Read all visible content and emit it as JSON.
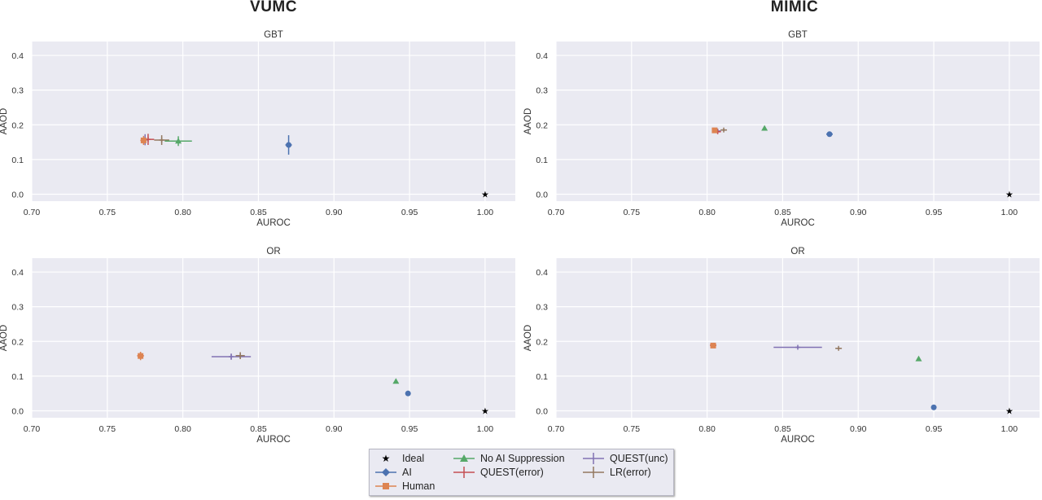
{
  "column_titles": [
    "VUMC",
    "MIMIC"
  ],
  "colors": {
    "Ideal": "#000000",
    "AI": "#4c72b0",
    "Human": "#dd8452",
    "No AI Suppression": "#55a868",
    "QUEST(error)": "#c44e52",
    "QUEST(unc)": "#8172b3",
    "LR(error)": "#937860"
  },
  "markers": {
    "Ideal": "star",
    "AI": "circle",
    "Human": "square",
    "No AI Suppression": "triangle",
    "QUEST(error)": "plus",
    "QUEST(unc)": "plus",
    "LR(error)": "plus"
  },
  "legend": {
    "entries": [
      "Ideal",
      "AI",
      "Human",
      "No AI Suppression",
      "QUEST(error)",
      "QUEST(unc)",
      "LR(error)"
    ]
  },
  "chart_data": [
    {
      "type": "scatter",
      "dataset": "VUMC",
      "title": "GBT",
      "xlabel": "AUROC",
      "ylabel": "AAOD",
      "xlim": [
        0.7,
        1.02
      ],
      "ylim": [
        -0.02,
        0.44
      ],
      "xticks": [
        "0.70",
        "0.75",
        "0.80",
        "0.85",
        "0.90",
        "0.95",
        "1.00"
      ],
      "yticks": [
        "0.0",
        "0.1",
        "0.2",
        "0.3",
        "0.4"
      ],
      "grid": true,
      "points": [
        {
          "series": "Ideal",
          "x": 1.0,
          "y": 0.0,
          "xerr": 0,
          "yerr": 0
        },
        {
          "series": "AI",
          "x": 0.87,
          "y": 0.142,
          "xerr": 0.001,
          "yerr": 0.028
        },
        {
          "series": "Human",
          "x": 0.774,
          "y": 0.155,
          "xerr": 0.002,
          "yerr": 0.013
        },
        {
          "series": "No AI Suppression",
          "x": 0.797,
          "y": 0.153,
          "xerr": 0.009,
          "yerr": 0.014
        },
        {
          "series": "QUEST(error)",
          "x": 0.777,
          "y": 0.158,
          "xerr": 0.004,
          "yerr": 0.016
        },
        {
          "series": "QUEST(unc)",
          "x": 0.775,
          "y": 0.157,
          "xerr": 0.002,
          "yerr": 0.016
        },
        {
          "series": "LR(error)",
          "x": 0.786,
          "y": 0.156,
          "xerr": 0.005,
          "yerr": 0.014
        }
      ]
    },
    {
      "type": "scatter",
      "dataset": "MIMIC",
      "title": "GBT",
      "xlabel": "AUROC",
      "ylabel": "AAOD",
      "xlim": [
        0.7,
        1.02
      ],
      "ylim": [
        -0.02,
        0.44
      ],
      "xticks": [
        "0.70",
        "0.75",
        "0.80",
        "0.85",
        "0.90",
        "0.95",
        "1.00"
      ],
      "yticks": [
        "0.0",
        "0.1",
        "0.2",
        "0.3",
        "0.4"
      ],
      "grid": true,
      "points": [
        {
          "series": "Ideal",
          "x": 1.0,
          "y": 0.0,
          "xerr": 0,
          "yerr": 0
        },
        {
          "series": "AI",
          "x": 0.881,
          "y": 0.173,
          "xerr": 0.002,
          "yerr": 0.003
        },
        {
          "series": "Human",
          "x": 0.805,
          "y": 0.184,
          "xerr": 0,
          "yerr": 0
        },
        {
          "series": "No AI Suppression",
          "x": 0.838,
          "y": 0.19,
          "xerr": 0,
          "yerr": 0
        },
        {
          "series": "QUEST(error)",
          "x": 0.807,
          "y": 0.18,
          "xerr": 0.002,
          "yerr": 0.003
        },
        {
          "series": "QUEST(unc)",
          "x": 0.807,
          "y": 0.182,
          "xerr": 0.001,
          "yerr": 0.002
        },
        {
          "series": "LR(error)",
          "x": 0.811,
          "y": 0.185,
          "xerr": 0.002,
          "yerr": 0.003
        }
      ]
    },
    {
      "type": "scatter",
      "dataset": "VUMC",
      "title": "OR",
      "xlabel": "AUROC",
      "ylabel": "AAOD",
      "xlim": [
        0.7,
        1.02
      ],
      "ylim": [
        -0.02,
        0.44
      ],
      "xticks": [
        "0.70",
        "0.75",
        "0.80",
        "0.85",
        "0.90",
        "0.95",
        "1.00"
      ],
      "yticks": [
        "0.0",
        "0.1",
        "0.2",
        "0.3",
        "0.4"
      ],
      "grid": true,
      "points": [
        {
          "series": "Ideal",
          "x": 1.0,
          "y": 0.0,
          "xerr": 0,
          "yerr": 0
        },
        {
          "series": "AI",
          "x": 0.949,
          "y": 0.05,
          "xerr": 0,
          "yerr": 0
        },
        {
          "series": "Human",
          "x": 0.772,
          "y": 0.158,
          "xerr": 0.002,
          "yerr": 0.012
        },
        {
          "series": "No AI Suppression",
          "x": 0.941,
          "y": 0.085,
          "xerr": 0,
          "yerr": 0
        },
        {
          "series": "QUEST(error)",
          "x": 0.772,
          "y": 0.159,
          "xerr": 0.002,
          "yerr": 0.01
        },
        {
          "series": "QUEST(unc)",
          "x": 0.832,
          "y": 0.156,
          "xerr": 0.013,
          "yerr": 0.009
        },
        {
          "series": "LR(error)",
          "x": 0.838,
          "y": 0.159,
          "xerr": 0.003,
          "yerr": 0.01
        }
      ]
    },
    {
      "type": "scatter",
      "dataset": "MIMIC",
      "title": "OR",
      "xlabel": "AUROC",
      "ylabel": "AAOD",
      "xlim": [
        0.7,
        1.02
      ],
      "ylim": [
        -0.02,
        0.44
      ],
      "xticks": [
        "0.70",
        "0.75",
        "0.80",
        "0.85",
        "0.90",
        "0.95",
        "1.00"
      ],
      "yticks": [
        "0.0",
        "0.1",
        "0.2",
        "0.3",
        "0.4"
      ],
      "grid": true,
      "points": [
        {
          "series": "Ideal",
          "x": 1.0,
          "y": 0.0,
          "xerr": 0,
          "yerr": 0
        },
        {
          "series": "AI",
          "x": 0.95,
          "y": 0.01,
          "xerr": 0,
          "yerr": 0
        },
        {
          "series": "Human",
          "x": 0.804,
          "y": 0.188,
          "xerr": 0,
          "yerr": 0.003
        },
        {
          "series": "No AI Suppression",
          "x": 0.94,
          "y": 0.15,
          "xerr": 0,
          "yerr": 0
        },
        {
          "series": "QUEST(error)",
          "x": 0.804,
          "y": 0.189,
          "xerr": 0.001,
          "yerr": 0.004
        },
        {
          "series": "QUEST(unc)",
          "x": 0.86,
          "y": 0.183,
          "xerr": 0.016,
          "yerr": 0.003
        },
        {
          "series": "LR(error)",
          "x": 0.887,
          "y": 0.18,
          "xerr": 0.001,
          "yerr": 0.002
        }
      ]
    }
  ]
}
